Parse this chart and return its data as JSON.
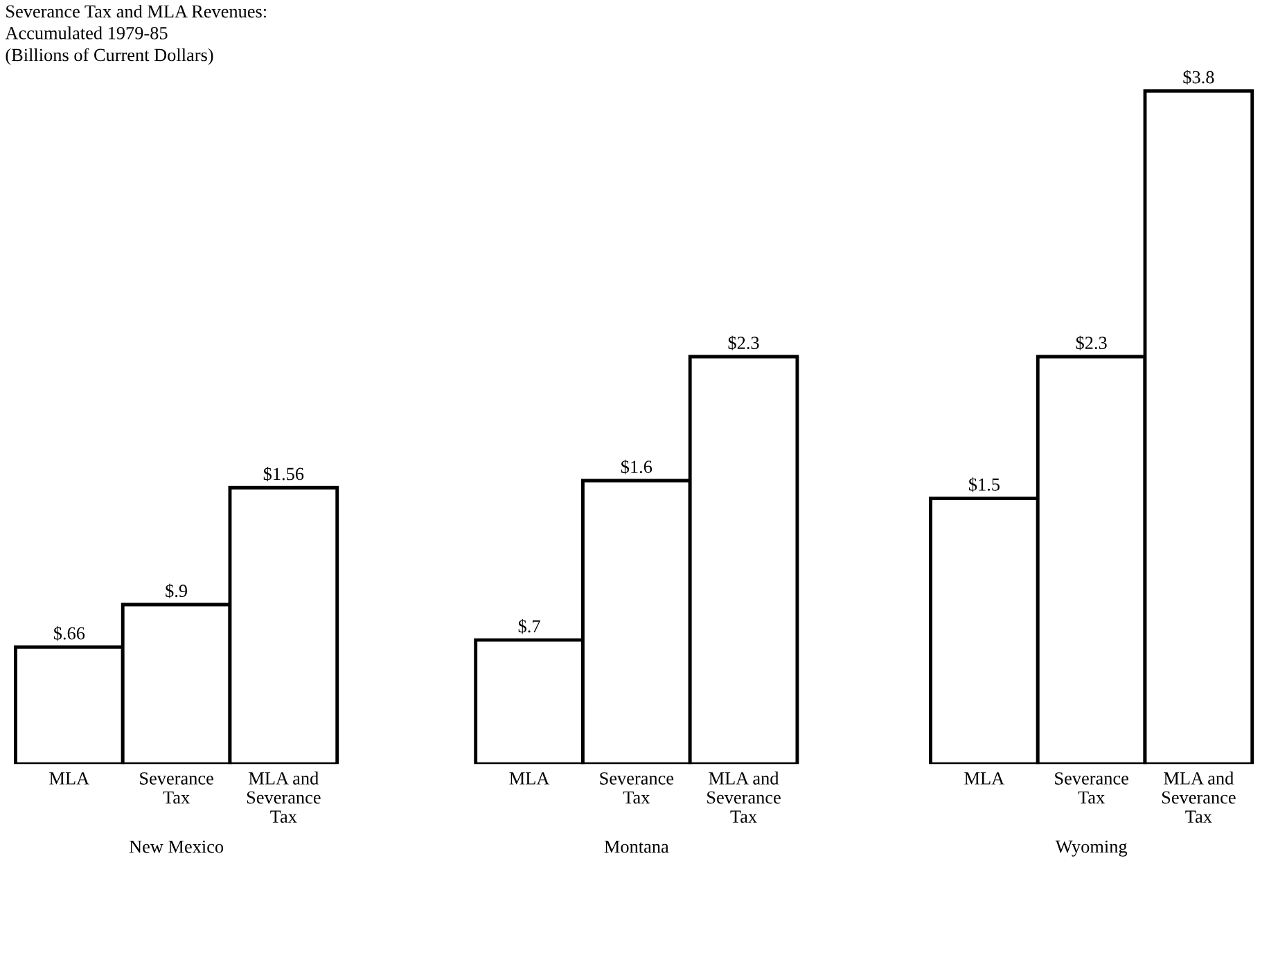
{
  "chart_data": [
    {
      "type": "bar",
      "title": "Severance Tax and MLA Revenues:\nAccumulated 1979-85\n(Billions of Current Dollars)",
      "xlabel": "New Mexico",
      "categories": [
        "MLA",
        "Severance\nTax",
        "MLA and\nSeverance\nTax"
      ],
      "values": [
        0.66,
        0.9,
        1.56
      ],
      "value_labels": [
        "$.66",
        "$.9",
        "$1.56"
      ],
      "color": "#ffffff"
    },
    {
      "type": "bar",
      "xlabel": "Montana",
      "categories": [
        "MLA",
        "Severance\nTax",
        "MLA and\nSeverance\nTax"
      ],
      "values": [
        0.7,
        1.6,
        2.3
      ],
      "value_labels": [
        "$.7",
        "$1.6",
        "$2.3"
      ],
      "color": "#ffffff"
    },
    {
      "type": "bar",
      "xlabel": "Wyoming",
      "categories": [
        "MLA",
        "Severance\nTax",
        "MLA and\nSeverance\nTax"
      ],
      "values": [
        1.5,
        2.3,
        3.8
      ],
      "value_labels": [
        "$1.5",
        "$2.3",
        "$3.8"
      ],
      "color": "#ffffff"
    }
  ]
}
